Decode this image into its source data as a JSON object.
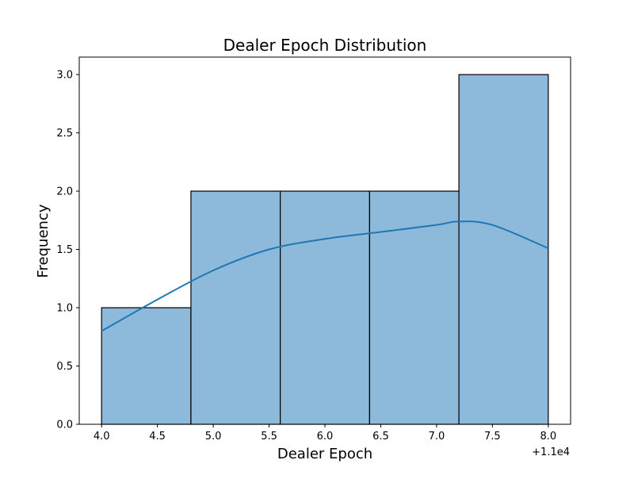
{
  "chart_data": {
    "type": "bar",
    "title": "Dealer Epoch Distribution",
    "xlabel": "Dealer Epoch",
    "ylabel": "Frequency",
    "x_offset_label": "+1.1e4",
    "bins": [
      {
        "x0": 4.0,
        "x1": 4.8,
        "count": 1
      },
      {
        "x0": 4.8,
        "x1": 5.6,
        "count": 2
      },
      {
        "x0": 5.6,
        "x1": 6.4,
        "count": 2
      },
      {
        "x0": 6.4,
        "x1": 7.2,
        "count": 2
      },
      {
        "x0": 7.2,
        "x1": 8.0,
        "count": 3
      }
    ],
    "kde": {
      "x": [
        4.0,
        4.5,
        5.0,
        5.5,
        6.0,
        6.5,
        7.0,
        7.2,
        7.5,
        8.0
      ],
      "y": [
        0.8,
        1.07,
        1.32,
        1.5,
        1.59,
        1.65,
        1.71,
        1.74,
        1.71,
        1.51
      ]
    },
    "xlim": [
      3.8,
      8.2
    ],
    "ylim": [
      0,
      3.15
    ],
    "xticks": [
      "4.0",
      "4.5",
      "5.0",
      "5.5",
      "6.0",
      "6.5",
      "7.0",
      "7.5",
      "8.0"
    ],
    "xtick_values": [
      4.0,
      4.5,
      5.0,
      5.5,
      6.0,
      6.5,
      7.0,
      7.5,
      8.0
    ],
    "yticks": [
      "0.0",
      "0.5",
      "1.0",
      "1.5",
      "2.0",
      "2.5",
      "3.0"
    ],
    "ytick_values": [
      0.0,
      0.5,
      1.0,
      1.5,
      2.0,
      2.5,
      3.0
    ],
    "bar_color": "#8db9da",
    "bar_edge_color": "#000000",
    "kde_color": "#1f77b4",
    "grid": false,
    "legend": "none"
  }
}
